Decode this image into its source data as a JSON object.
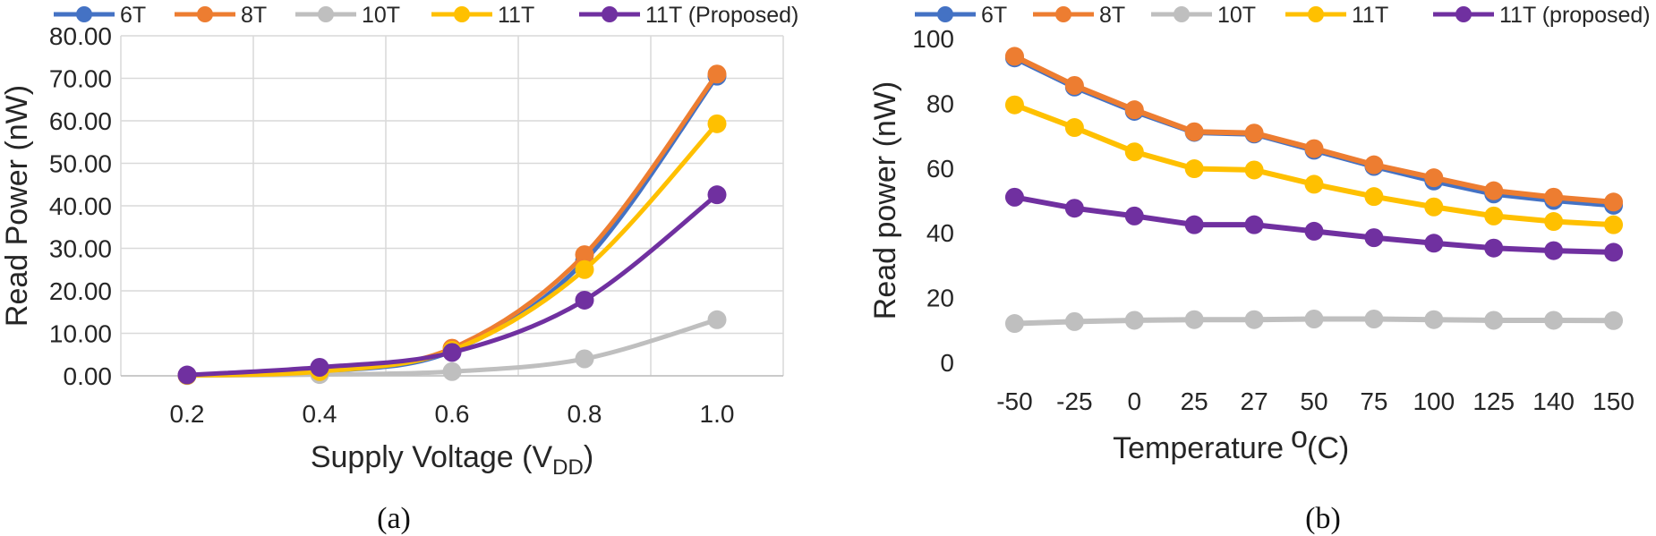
{
  "chart_data": [
    {
      "type": "line",
      "caption": "(a)",
      "title": "",
      "xlabel": "Supply Voltage (V",
      "xlabel_sub": "DD",
      "xlabel_close": ")",
      "ylabel": "Read Power (nW)",
      "categories": [
        "0.2",
        "0.4",
        "0.6",
        "0.8",
        "1.0"
      ],
      "x": [
        0.2,
        0.4,
        0.6,
        0.8,
        1.0
      ],
      "xlim": [
        0.1,
        1.1
      ],
      "ylim": [
        0,
        80
      ],
      "yticks": [
        "0.00",
        "10.00",
        "20.00",
        "30.00",
        "40.00",
        "50.00",
        "60.00",
        "70.00",
        "80.00"
      ],
      "grid": true,
      "legend": "top",
      "series": [
        {
          "name": "6T",
          "color": "#4472c4",
          "values": [
            0.1,
            1.0,
            5.8,
            27.0,
            70.5
          ]
        },
        {
          "name": "8T",
          "color": "#ed7d31",
          "values": [
            0.1,
            1.1,
            6.5,
            28.5,
            71.0
          ]
        },
        {
          "name": "10T",
          "color": "#bfbfbf",
          "values": [
            0.05,
            0.3,
            1.0,
            4.0,
            13.2
          ]
        },
        {
          "name": "11T",
          "color": "#ffc000",
          "values": [
            0.1,
            1.0,
            6.0,
            25.0,
            59.3
          ]
        },
        {
          "name": "11T (Proposed)",
          "color": "#7030a0",
          "values": [
            0.2,
            2.0,
            5.5,
            17.8,
            42.6
          ]
        }
      ]
    },
    {
      "type": "line",
      "caption": "(b)",
      "title": "",
      "xlabel": "Temperature",
      "xlabel_degree": "o",
      "xlabel_unit": "(C)",
      "ylabel": "Read power (nW)",
      "categories": [
        "-50",
        "-25",
        "0",
        "25",
        "27",
        "50",
        "75",
        "100",
        "125",
        "140",
        "150"
      ],
      "ylim": [
        0,
        100
      ],
      "yticks": [
        "0",
        "20",
        "40",
        "60",
        "80",
        "100"
      ],
      "grid": false,
      "legend": "top",
      "series": [
        {
          "name": "6T",
          "color": "#4472c4",
          "values": [
            94,
            85,
            77.5,
            71,
            70.5,
            65.5,
            60.5,
            56,
            52,
            50,
            48.5
          ]
        },
        {
          "name": "8T",
          "color": "#ed7d31",
          "values": [
            94.5,
            85.5,
            78,
            71.2,
            70.8,
            66,
            61,
            57,
            53,
            51,
            49.5
          ]
        },
        {
          "name": "10T",
          "color": "#bfbfbf",
          "values": [
            12,
            12.6,
            13,
            13.2,
            13.2,
            13.4,
            13.4,
            13.2,
            13,
            13,
            12.9
          ]
        },
        {
          "name": "11T",
          "color": "#ffc000",
          "values": [
            79.5,
            72.5,
            65,
            59.8,
            59.4,
            55,
            51.2,
            48,
            45.2,
            43.5,
            42.5
          ]
        },
        {
          "name": "11T (proposed)",
          "color": "#7030a0",
          "values": [
            51,
            47.6,
            45.2,
            42.5,
            42.5,
            40.5,
            38.5,
            36.8,
            35.3,
            34.5,
            34
          ]
        }
      ]
    }
  ]
}
